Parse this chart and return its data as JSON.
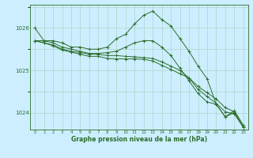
{
  "xlabel": "Graphe pression niveau de la mer (hPa)",
  "bg_color": "#cceeff",
  "line_color": "#2d6e2d",
  "grid_color": "#aaccbb",
  "ylim": [
    1023.6,
    1026.55
  ],
  "xlim": [
    -0.5,
    23.5
  ],
  "series": [
    [
      1026.0,
      1025.7,
      1025.7,
      1025.65,
      1025.55,
      1025.55,
      1025.5,
      1025.5,
      1025.55,
      1025.75,
      1025.85,
      1026.1,
      1026.3,
      1026.4,
      1026.2,
      1026.05,
      1025.75,
      1025.45,
      1025.1,
      1024.8,
      1024.2,
      1023.9,
      1024.05,
      1023.7
    ],
    [
      1025.7,
      1025.7,
      1025.65,
      1025.55,
      1025.5,
      1025.45,
      1025.4,
      1025.4,
      1025.42,
      1025.45,
      1025.55,
      1025.65,
      1025.7,
      1025.7,
      1025.55,
      1025.35,
      1025.05,
      1024.75,
      1024.45,
      1024.25,
      1024.2,
      1023.9,
      1024.0,
      1023.65
    ],
    [
      1025.7,
      1025.65,
      1025.6,
      1025.5,
      1025.45,
      1025.42,
      1025.38,
      1025.38,
      1025.35,
      1025.35,
      1025.33,
      1025.32,
      1025.3,
      1025.28,
      1025.2,
      1025.1,
      1025.0,
      1024.82,
      1024.55,
      1024.38,
      1024.22,
      1024.02,
      1023.97,
      1023.65
    ],
    [
      1025.7,
      1025.65,
      1025.58,
      1025.48,
      1025.43,
      1025.38,
      1025.33,
      1025.33,
      1025.28,
      1025.27,
      1025.27,
      1025.27,
      1025.26,
      1025.22,
      1025.12,
      1025.02,
      1024.92,
      1024.82,
      1024.62,
      1024.47,
      1024.32,
      1024.12,
      1024.02,
      1023.65
    ]
  ]
}
